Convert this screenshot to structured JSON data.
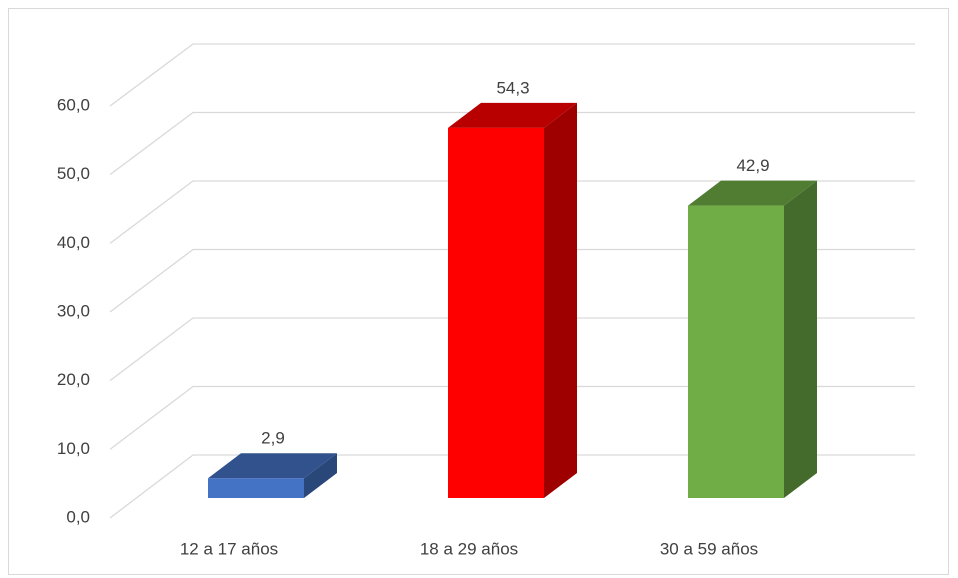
{
  "chart_data": {
    "type": "bar3d",
    "categories": [
      "12 a 17 años",
      "18 a 29 años",
      "30 a 59 años"
    ],
    "values": [
      2.9,
      54.3,
      42.9
    ],
    "value_labels": [
      "2,9",
      "54,3",
      "42,9"
    ],
    "colors": [
      "#4472c4",
      "#ff0000",
      "#70ad47"
    ],
    "ylim": [
      0,
      60
    ],
    "yticks": [
      {
        "value": 0,
        "label": "0,0"
      },
      {
        "value": 10,
        "label": "10,0"
      },
      {
        "value": 20,
        "label": "20,0"
      },
      {
        "value": 30,
        "label": "30,0"
      },
      {
        "value": 40,
        "label": "40,0"
      },
      {
        "value": 50,
        "label": "50,0"
      },
      {
        "value": 60,
        "label": "60,0"
      }
    ],
    "grid": true
  }
}
